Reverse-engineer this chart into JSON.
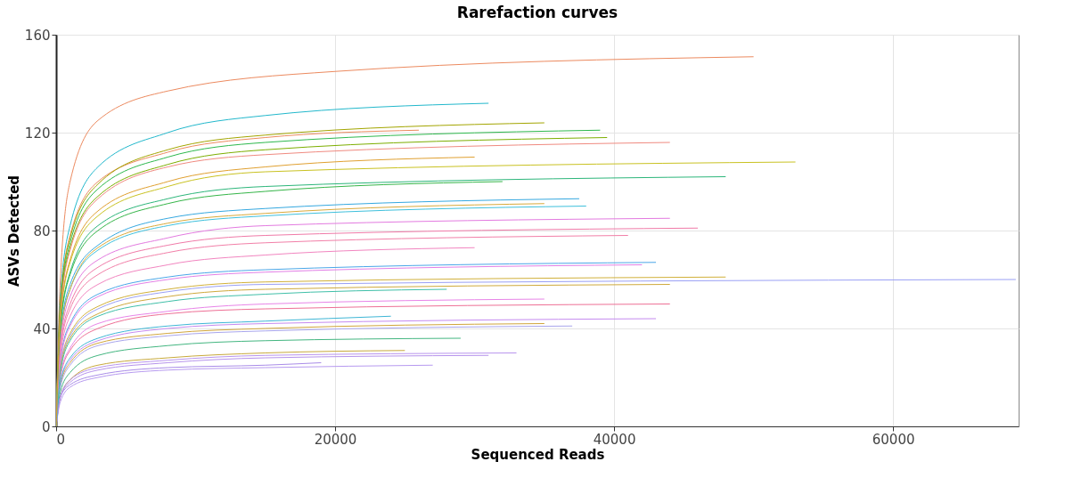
{
  "chart_data": {
    "type": "line",
    "title": "Rarefaction curves",
    "xlabel": "Sequenced Reads",
    "ylabel": "ASVs Detected",
    "xlim": [
      0,
      69000
    ],
    "ylim": [
      0,
      160
    ],
    "xticks": [
      0,
      20000,
      40000,
      60000
    ],
    "yticks": [
      0,
      40,
      80,
      120,
      160
    ],
    "grid": true,
    "legend": false,
    "line_style": "solid",
    "marker": "none",
    "series": [
      {
        "color": "#ec8a5f",
        "x": [
          0,
          300,
          1000,
          3000,
          8000,
          20000,
          50000
        ],
        "values": [
          0,
          60,
          100,
          125,
          137,
          145,
          151
        ]
      },
      {
        "color": "#22b8cc",
        "x": [
          0,
          300,
          1000,
          3000,
          8000,
          15000,
          31000
        ],
        "values": [
          0,
          53,
          82,
          106,
          120,
          127,
          132
        ]
      },
      {
        "color": "#ec8a5f",
        "x": [
          0,
          300,
          1000,
          3000,
          8000,
          15000,
          26000
        ],
        "values": [
          0,
          50,
          78,
          100,
          112,
          118,
          121
        ]
      },
      {
        "color": "#a3a500",
        "x": [
          0,
          300,
          1000,
          3000,
          8000,
          15000,
          35000
        ],
        "values": [
          0,
          50,
          77,
          99,
          113,
          119,
          124
        ]
      },
      {
        "color": "#2db84d",
        "x": [
          0,
          300,
          1000,
          3000,
          8000,
          15000,
          39000
        ],
        "values": [
          0,
          48,
          75,
          97,
          110,
          116,
          121
        ]
      },
      {
        "color": "#7cae00",
        "x": [
          0,
          300,
          1000,
          3000,
          8000,
          15000,
          39500
        ],
        "values": [
          0,
          47,
          73,
          94,
          107,
          113,
          118
        ]
      },
      {
        "color": "#f08a80",
        "x": [
          0,
          300,
          1000,
          3000,
          8000,
          15000,
          44000
        ],
        "values": [
          0,
          46,
          72,
          93,
          106,
          111,
          116
        ]
      },
      {
        "color": "#c9c221",
        "x": [
          0,
          300,
          1000,
          3000,
          8000,
          15000,
          53000
        ],
        "values": [
          0,
          43,
          67,
          86,
          98,
          104,
          108
        ]
      },
      {
        "color": "#2cb67a",
        "x": [
          0,
          300,
          1000,
          3000,
          8000,
          15000,
          48000
        ],
        "values": [
          0,
          41,
          63,
          82,
          93,
          98,
          102
        ]
      },
      {
        "color": "#35a8e0",
        "x": [
          0,
          300,
          1000,
          3000,
          8000,
          15000,
          37500
        ],
        "values": [
          0,
          37,
          58,
          74,
          85,
          89,
          93
        ]
      },
      {
        "color": "#3ec0dc",
        "x": [
          0,
          300,
          1000,
          3000,
          8000,
          15000,
          38000
        ],
        "values": [
          0,
          36,
          56,
          72,
          82,
          86,
          90
        ]
      },
      {
        "color": "#d9a93a",
        "x": [
          0,
          300,
          1000,
          3000,
          8000,
          15000,
          35000
        ],
        "values": [
          0,
          36,
          56,
          73,
          83,
          87,
          91
        ]
      },
      {
        "color": "#e37ae0",
        "x": [
          0,
          300,
          1000,
          3000,
          8000,
          15000,
          44000
        ],
        "values": [
          0,
          34,
          53,
          68,
          77,
          82,
          85
        ]
      },
      {
        "color": "#f07aa8",
        "x": [
          0,
          300,
          1000,
          3000,
          8000,
          15000,
          46000
        ],
        "values": [
          0,
          32,
          50,
          65,
          74,
          78,
          81
        ]
      },
      {
        "color": "#f27fa8",
        "x": [
          0,
          300,
          1000,
          3000,
          8000,
          15000,
          41000
        ],
        "values": [
          0,
          31,
          48,
          62,
          71,
          75,
          78
        ]
      },
      {
        "color": "#4aa6e8",
        "x": [
          0,
          300,
          1000,
          3000,
          8000,
          15000,
          43000
        ],
        "values": [
          0,
          27,
          42,
          54,
          61,
          64,
          67
        ]
      },
      {
        "color": "#e27ee6",
        "x": [
          0,
          300,
          1000,
          3000,
          8000,
          15000,
          42000
        ],
        "values": [
          0,
          26,
          41,
          53,
          60,
          63,
          66
        ]
      },
      {
        "color": "#d1b03a",
        "x": [
          0,
          300,
          1000,
          3000,
          8000,
          15000,
          48000
        ],
        "values": [
          0,
          24,
          38,
          49,
          56,
          59,
          61
        ]
      },
      {
        "color": "#9aa0f5",
        "x": [
          0,
          300,
          1000,
          3000,
          8000,
          15000,
          68800
        ],
        "values": [
          0,
          24,
          37,
          48,
          55,
          58,
          60
        ]
      },
      {
        "color": "#cfa93c",
        "x": [
          0,
          300,
          1000,
          3000,
          8000,
          15000,
          44000
        ],
        "values": [
          0,
          23,
          36,
          46,
          53,
          56,
          58
        ]
      },
      {
        "color": "#ee6f95",
        "x": [
          0,
          300,
          1000,
          3000,
          8000,
          15000,
          44000
        ],
        "values": [
          0,
          20,
          31,
          40,
          46,
          48,
          50
        ]
      },
      {
        "color": "#e884e8",
        "x": [
          0,
          300,
          1000,
          3000,
          8000,
          15000,
          35000
        ],
        "values": [
          0,
          21,
          32,
          42,
          47,
          50,
          52
        ]
      },
      {
        "color": "#c58af0",
        "x": [
          0,
          300,
          1000,
          3000,
          8000,
          15000,
          43000
        ],
        "values": [
          0,
          18,
          27,
          35,
          40,
          42,
          44
        ]
      },
      {
        "color": "#d1a53b",
        "x": [
          0,
          300,
          1000,
          3000,
          8000,
          15000,
          35000
        ],
        "values": [
          0,
          17,
          26,
          34,
          38,
          40,
          42
        ]
      },
      {
        "color": "#a9a6ec",
        "x": [
          0,
          300,
          1000,
          3000,
          8000,
          15000,
          37000
        ],
        "values": [
          0,
          16,
          25,
          33,
          37,
          39,
          41
        ]
      },
      {
        "color": "#43b680",
        "x": [
          0,
          300,
          1000,
          3000,
          8000,
          15000,
          29000
        ],
        "values": [
          0,
          14,
          22,
          29,
          33,
          35,
          36
        ]
      },
      {
        "color": "#c8a93c",
        "x": [
          0,
          300,
          1000,
          3000,
          8000,
          15000,
          25000
        ],
        "values": [
          0,
          12,
          19,
          25,
          28,
          30,
          31
        ]
      },
      {
        "color": "#b995ee",
        "x": [
          0,
          300,
          1000,
          3000,
          8000,
          15000,
          33000
        ],
        "values": [
          0,
          12,
          19,
          24,
          27,
          29,
          30
        ]
      },
      {
        "color": "#b693ec",
        "x": [
          0,
          300,
          1000,
          3000,
          8000,
          15000,
          31000
        ],
        "values": [
          0,
          12,
          18,
          23,
          26,
          28,
          29
        ]
      },
      {
        "color": "#b79af0",
        "x": [
          0,
          300,
          1000,
          3000,
          8000,
          15000,
          27000
        ],
        "values": [
          0,
          10,
          16,
          20,
          23,
          24,
          25
        ]
      },
      {
        "color": "#a98ce8",
        "x": [
          0,
          300,
          1000,
          3000,
          8000,
          15000,
          19000
        ],
        "values": [
          0,
          12,
          17,
          21,
          24,
          25,
          26
        ]
      },
      {
        "color": "#3eb6d6",
        "x": [
          0,
          300,
          1000,
          3000,
          8000,
          15000,
          24000
        ],
        "values": [
          0,
          18,
          28,
          36,
          41,
          43,
          45
        ]
      },
      {
        "color": "#3fbfa8",
        "x": [
          0,
          300,
          1000,
          3000,
          8000,
          15000,
          28000
        ],
        "values": [
          0,
          22,
          35,
          45,
          51,
          54,
          56
        ]
      },
      {
        "color": "#f285c0",
        "x": [
          0,
          300,
          1000,
          3000,
          8000,
          15000,
          30000
        ],
        "values": [
          0,
          29,
          45,
          58,
          66,
          70,
          73
        ]
      },
      {
        "color": "#35b548",
        "x": [
          0,
          300,
          1000,
          3000,
          8000,
          15000,
          32000
        ],
        "values": [
          0,
          40,
          62,
          80,
          91,
          96,
          100
        ]
      },
      {
        "color": "#e0a030",
        "x": [
          0,
          300,
          1000,
          3000,
          8000,
          15000,
          30000
        ],
        "values": [
          0,
          44,
          68,
          88,
          100,
          106,
          110
        ]
      }
    ]
  }
}
